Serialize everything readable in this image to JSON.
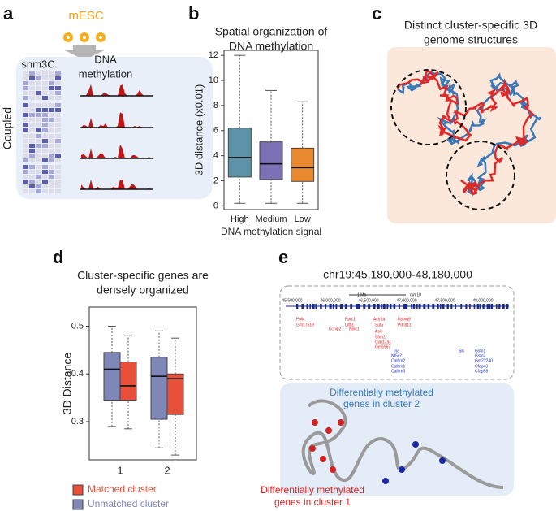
{
  "panel_a": {
    "letter": "a",
    "cell": "mESC",
    "left_label": "snm3C",
    "right_label": [
      "DNA",
      "methylation"
    ],
    "side_label": "Coupled"
  },
  "panel_c": {
    "letter": "c",
    "title": [
      "Distinct cluster-specific 3D",
      "genome structures"
    ]
  },
  "panel_e": {
    "letter": "e",
    "region": "chr19:45,180,000-48,180,000",
    "track": {
      "coords": [
        "45,500,000",
        "46,000,000",
        "46,500,000",
        "47,000,000",
        "47,500,000",
        "48,000,000"
      ],
      "scale": "1 Mb",
      "genome": "mm10"
    },
    "red_genes": [
      "Polk",
      "Gm17519",
      "Kcnip2",
      "Pprc1",
      "Ldb1",
      "Nolc1",
      "Actr1a",
      "Sufu",
      "As3",
      "Sfxn2",
      "Cyp17a1",
      "Gm5967",
      "Usmg5",
      "Pdcd11"
    ],
    "blue_genes": [
      "Ina",
      "Nt5c2",
      "Calhm2",
      "Calhm1",
      "Calhm3",
      "Slk",
      "Gsto1",
      "Gsto2",
      "Gm22240",
      "Cfap43",
      "Cfap58"
    ],
    "label_cluster2": [
      "Differentially methylated",
      "genes in cluster 2"
    ],
    "label_cluster1": [
      "Differentially methylated",
      "genes in cluster 1"
    ]
  },
  "chart_data": [
    {
      "type": "box",
      "letter": "b",
      "title": [
        "Spatial organization of",
        "DNA methylation"
      ],
      "x_label": "DNA methylation signal",
      "y_label": "3D distance (x0.01)",
      "categories": [
        "High",
        "Medium",
        "Low"
      ],
      "colors": [
        "#5d93a8",
        "#7d71b6",
        "#e8892e"
      ],
      "values": [
        {
          "min": 0.2,
          "q1": 2.3,
          "median": 3.85,
          "q3": 6.2,
          "max": 12
        },
        {
          "min": 0.2,
          "q1": 2.1,
          "median": 3.35,
          "q3": 5.1,
          "max": 9.2
        },
        {
          "min": 0.2,
          "q1": 1.95,
          "median": 3.05,
          "q3": 4.6,
          "max": 8.3
        }
      ],
      "ylim": [
        -0.3,
        12.4
      ],
      "yticks": [
        0,
        2,
        4,
        6,
        8,
        10,
        12
      ]
    },
    {
      "type": "grouped_box",
      "letter": "d",
      "title": [
        "Cluster-specific genes are",
        "densely organized"
      ],
      "y_label": "3D Distance",
      "categories": [
        "1",
        "2"
      ],
      "series": [
        {
          "name": "Unmatched cluster",
          "color": "#7f87b6",
          "values": [
            {
              "min": 0.29,
              "q1": 0.345,
              "median": 0.41,
              "q3": 0.445,
              "max": 0.5
            },
            {
              "min": 0.245,
              "q1": 0.305,
              "median": 0.395,
              "q3": 0.435,
              "max": 0.49
            }
          ]
        },
        {
          "name": "Matched cluster",
          "color": "#e8503a",
          "values": [
            {
              "min": 0.285,
              "q1": 0.345,
              "median": 0.375,
              "q3": 0.425,
              "max": 0.48
            },
            {
              "min": 0.23,
              "q1": 0.315,
              "median": 0.39,
              "q3": 0.4,
              "max": 0.475
            }
          ]
        }
      ],
      "ylim": [
        0.22,
        0.54
      ],
      "yticks": [
        0.3,
        0.4,
        0.5
      ]
    }
  ]
}
